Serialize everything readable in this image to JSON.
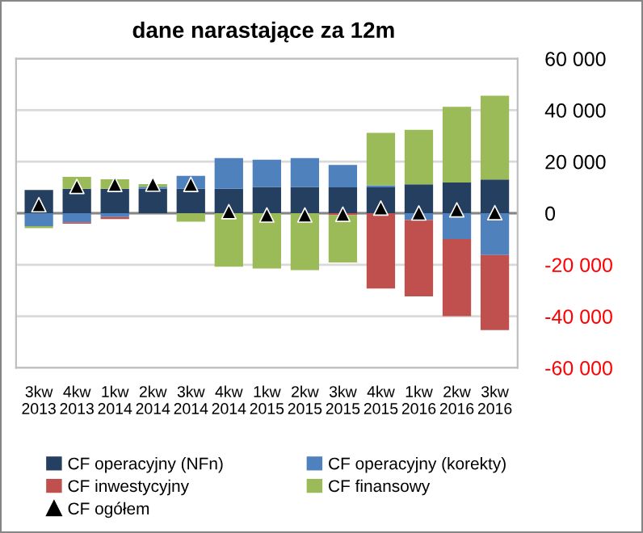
{
  "chart_data": {
    "type": "bar",
    "title": "dane narastające za 12m",
    "stacked": true,
    "categories": [
      "3kw\n2013",
      "4kw\n2013",
      "1kw\n2014",
      "2kw\n2014",
      "3kw\n2014",
      "4kw\n2014",
      "1kw\n2015",
      "2kw\n2015",
      "3kw\n2015",
      "4kw\n2015",
      "1kw\n2016",
      "2kw\n2016",
      "3kw\n2016"
    ],
    "series": [
      {
        "name": "CF operacyjny (NFn)",
        "color": "#243f60",
        "values": [
          9000,
          9500,
          9500,
          9500,
          9500,
          9500,
          10200,
          10200,
          10000,
          10000,
          11200,
          11900,
          13100
        ]
      },
      {
        "name": "CF operacyjny (korekty)",
        "color": "#4f81bd",
        "values": [
          -5000,
          -3500,
          -1500,
          800,
          5000,
          11900,
          10600,
          11200,
          8700,
          800,
          -2700,
          -10000,
          -16200
        ]
      },
      {
        "name": "CF inwestycyjny",
        "color": "#c0504d",
        "values": [
          0,
          -600,
          -800,
          0,
          0,
          0,
          0,
          0,
          -800,
          -29200,
          -29600,
          -30000,
          -29200
        ]
      },
      {
        "name": "CF finansowy",
        "color": "#9bbb59",
        "values": [
          -800,
          4600,
          3700,
          1000,
          -3300,
          -20800,
          -21500,
          -22100,
          -18300,
          20400,
          21200,
          29400,
          32500
        ]
      },
      {
        "name": "CF ogółem",
        "type": "scatter",
        "marker": "triangle",
        "color": "#000000",
        "values": [
          3300,
          10400,
          11200,
          11300,
          11200,
          600,
          -700,
          -700,
          -400,
          2000,
          100,
          1300,
          200
        ]
      }
    ],
    "ylim": [
      -60000,
      60000
    ],
    "yticks": [
      {
        "value": -60000,
        "label": "-60 000"
      },
      {
        "value": -40000,
        "label": "-40 000"
      },
      {
        "value": -20000,
        "label": "-20 000"
      },
      0,
      {
        "value": 20000,
        "label": "20 000"
      },
      {
        "value": 40000,
        "label": "40 000"
      },
      {
        "value": 60000,
        "label": "60 000"
      }
    ],
    "grid": "y",
    "legend": "bottom"
  }
}
